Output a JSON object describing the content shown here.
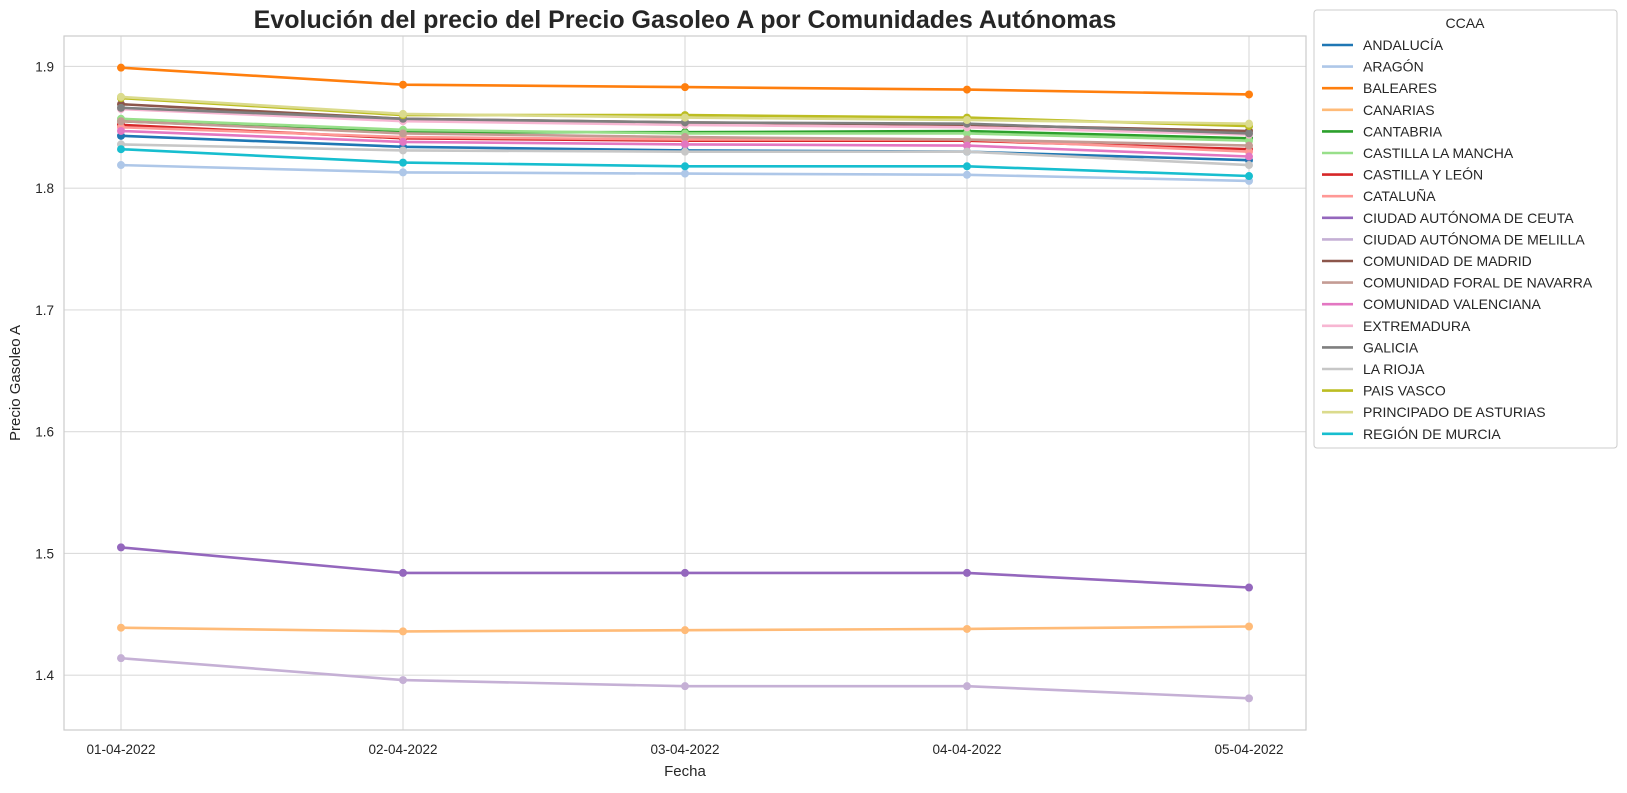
{
  "chart_data": {
    "type": "line",
    "title": "Evolución del precio del Precio Gasoleo A por Comunidades Autónomas",
    "xlabel": "Fecha",
    "ylabel": "Precio Gasoleo A",
    "x": [
      "01-04-2022",
      "02-04-2022",
      "03-04-2022",
      "04-04-2022",
      "05-04-2022"
    ],
    "ylim": [
      1.355,
      1.925
    ],
    "yticks": [
      "1.4",
      "1.5",
      "1.6",
      "1.7",
      "1.8",
      "1.9"
    ],
    "grid": true,
    "legend": {
      "title": "CCAA",
      "placement": "outside-right"
    },
    "series": [
      {
        "name": "ANDALUCÍA",
        "color": "#1f77b4",
        "values": [
          1.843,
          1.834,
          1.831,
          1.83,
          1.823
        ]
      },
      {
        "name": "ARAGÓN",
        "color": "#aec7e8",
        "values": [
          1.819,
          1.813,
          1.812,
          1.811,
          1.806
        ]
      },
      {
        "name": "BALEARES",
        "color": "#ff7f0e",
        "values": [
          1.899,
          1.885,
          1.883,
          1.881,
          1.877
        ]
      },
      {
        "name": "CANARIAS",
        "color": "#ffbb78",
        "values": [
          1.439,
          1.436,
          1.437,
          1.438,
          1.44
        ]
      },
      {
        "name": "CANTABRIA",
        "color": "#2ca02c",
        "values": [
          1.855,
          1.846,
          1.846,
          1.847,
          1.841
        ]
      },
      {
        "name": "CASTILLA LA MANCHA",
        "color": "#98df8a",
        "values": [
          1.857,
          1.848,
          1.845,
          1.845,
          1.839
        ]
      },
      {
        "name": "CASTILLA Y LEÓN",
        "color": "#d62728",
        "values": [
          1.852,
          1.841,
          1.839,
          1.839,
          1.832
        ]
      },
      {
        "name": "CATALUÑA",
        "color": "#ff9896",
        "values": [
          1.85,
          1.842,
          1.84,
          1.84,
          1.83
        ]
      },
      {
        "name": "CIUDAD AUTÓNOMA DE CEUTA",
        "color": "#9467bd",
        "values": [
          1.505,
          1.484,
          1.484,
          1.484,
          1.472
        ]
      },
      {
        "name": "CIUDAD AUTÓNOMA DE MELILLA",
        "color": "#c5b0d5",
        "values": [
          1.414,
          1.396,
          1.391,
          1.391,
          1.381
        ]
      },
      {
        "name": "COMUNIDAD DE MADRID",
        "color": "#8c564b",
        "values": [
          1.869,
          1.857,
          1.854,
          1.852,
          1.847
        ]
      },
      {
        "name": "COMUNIDAD FORAL DE NAVARRA",
        "color": "#c49c94",
        "values": [
          1.855,
          1.845,
          1.842,
          1.84,
          1.835
        ]
      },
      {
        "name": "COMUNIDAD VALENCIANA",
        "color": "#e377c2",
        "values": [
          1.847,
          1.838,
          1.836,
          1.835,
          1.826
        ]
      },
      {
        "name": "EXTREMADURA",
        "color": "#f7b6d2",
        "values": [
          1.865,
          1.855,
          1.852,
          1.85,
          1.844
        ]
      },
      {
        "name": "GALICIA",
        "color": "#7f7f7f",
        "values": [
          1.866,
          1.857,
          1.854,
          1.853,
          1.845
        ]
      },
      {
        "name": "LA RIOJA",
        "color": "#c7c7c7",
        "values": [
          1.836,
          1.831,
          1.83,
          1.83,
          1.819
        ]
      },
      {
        "name": "PAIS VASCO",
        "color": "#bcbd22",
        "values": [
          1.874,
          1.86,
          1.86,
          1.858,
          1.851
        ]
      },
      {
        "name": "PRINCIPADO DE ASTURIAS",
        "color": "#dbdb8d",
        "values": [
          1.875,
          1.861,
          1.858,
          1.856,
          1.853
        ]
      },
      {
        "name": "REGIÓN DE MURCIA",
        "color": "#17becf",
        "values": [
          1.832,
          1.821,
          1.818,
          1.818,
          1.81
        ]
      }
    ]
  }
}
